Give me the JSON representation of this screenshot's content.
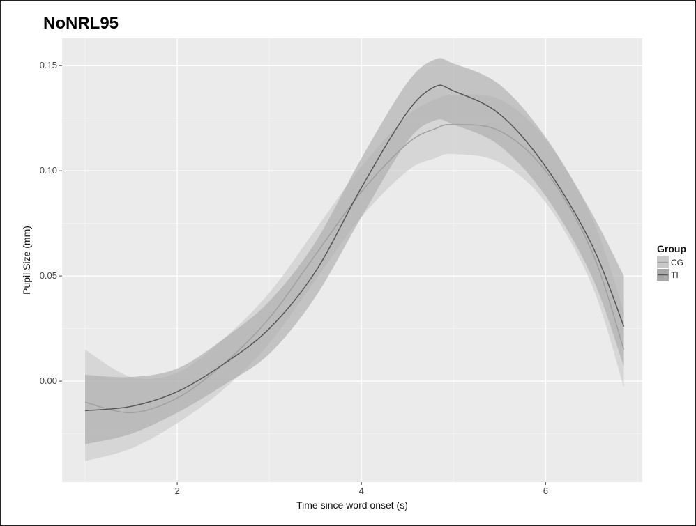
{
  "chart_data": {
    "type": "line",
    "title": "NoNRL95",
    "xlabel": "Time since word onset (s)",
    "ylabel": "Pupil Size (mm)",
    "xlim": [
      0.75,
      7.05
    ],
    "ylim": [
      -0.048,
      0.163
    ],
    "xticks": [
      2,
      4,
      6
    ],
    "xtick_labels": [
      "2",
      "4",
      "6"
    ],
    "yticks": [
      0.0,
      0.05,
      0.1,
      0.15
    ],
    "ytick_labels": [
      "0.00",
      "0.05",
      "0.10",
      "0.15"
    ],
    "grid": true,
    "panel_background": "#ebebeb",
    "legend": {
      "title": "Group",
      "position": "right",
      "entries": [
        "CG",
        "TI"
      ]
    },
    "series": [
      {
        "name": "CG",
        "color": "#a0a0a0",
        "band_color": "#c8c8c8",
        "x": [
          1.0,
          1.5,
          2.0,
          2.5,
          3.0,
          3.5,
          4.0,
          4.5,
          4.8,
          5.0,
          5.5,
          6.0,
          6.5,
          6.85
        ],
        "y": [
          -0.01,
          -0.015,
          -0.008,
          0.008,
          0.03,
          0.06,
          0.09,
          0.113,
          0.12,
          0.122,
          0.119,
          0.1,
          0.062,
          0.015
        ],
        "lower": [
          -0.038,
          -0.032,
          -0.02,
          -0.004,
          0.018,
          0.048,
          0.078,
          0.1,
          0.106,
          0.108,
          0.104,
          0.085,
          0.046,
          -0.003
        ],
        "upper": [
          0.015,
          0.002,
          0.004,
          0.02,
          0.042,
          0.072,
          0.102,
          0.126,
          0.134,
          0.136,
          0.134,
          0.115,
          0.078,
          0.033
        ]
      },
      {
        "name": "TI",
        "color": "#555555",
        "band_color": "#a8a8a8",
        "x": [
          1.0,
          1.5,
          2.0,
          2.5,
          3.0,
          3.5,
          4.0,
          4.5,
          4.8,
          5.0,
          5.5,
          6.0,
          6.5,
          6.85
        ],
        "y": [
          -0.014,
          -0.012,
          -0.005,
          0.008,
          0.025,
          0.052,
          0.092,
          0.128,
          0.14,
          0.138,
          0.127,
          0.102,
          0.065,
          0.026
        ],
        "lower": [
          -0.03,
          -0.025,
          -0.015,
          -0.002,
          0.013,
          0.04,
          0.078,
          0.114,
          0.124,
          0.122,
          0.112,
          0.088,
          0.05,
          0.007
        ],
        "upper": [
          0.003,
          0.002,
          0.006,
          0.02,
          0.038,
          0.066,
          0.106,
          0.142,
          0.153,
          0.151,
          0.141,
          0.116,
          0.08,
          0.05
        ]
      }
    ]
  }
}
